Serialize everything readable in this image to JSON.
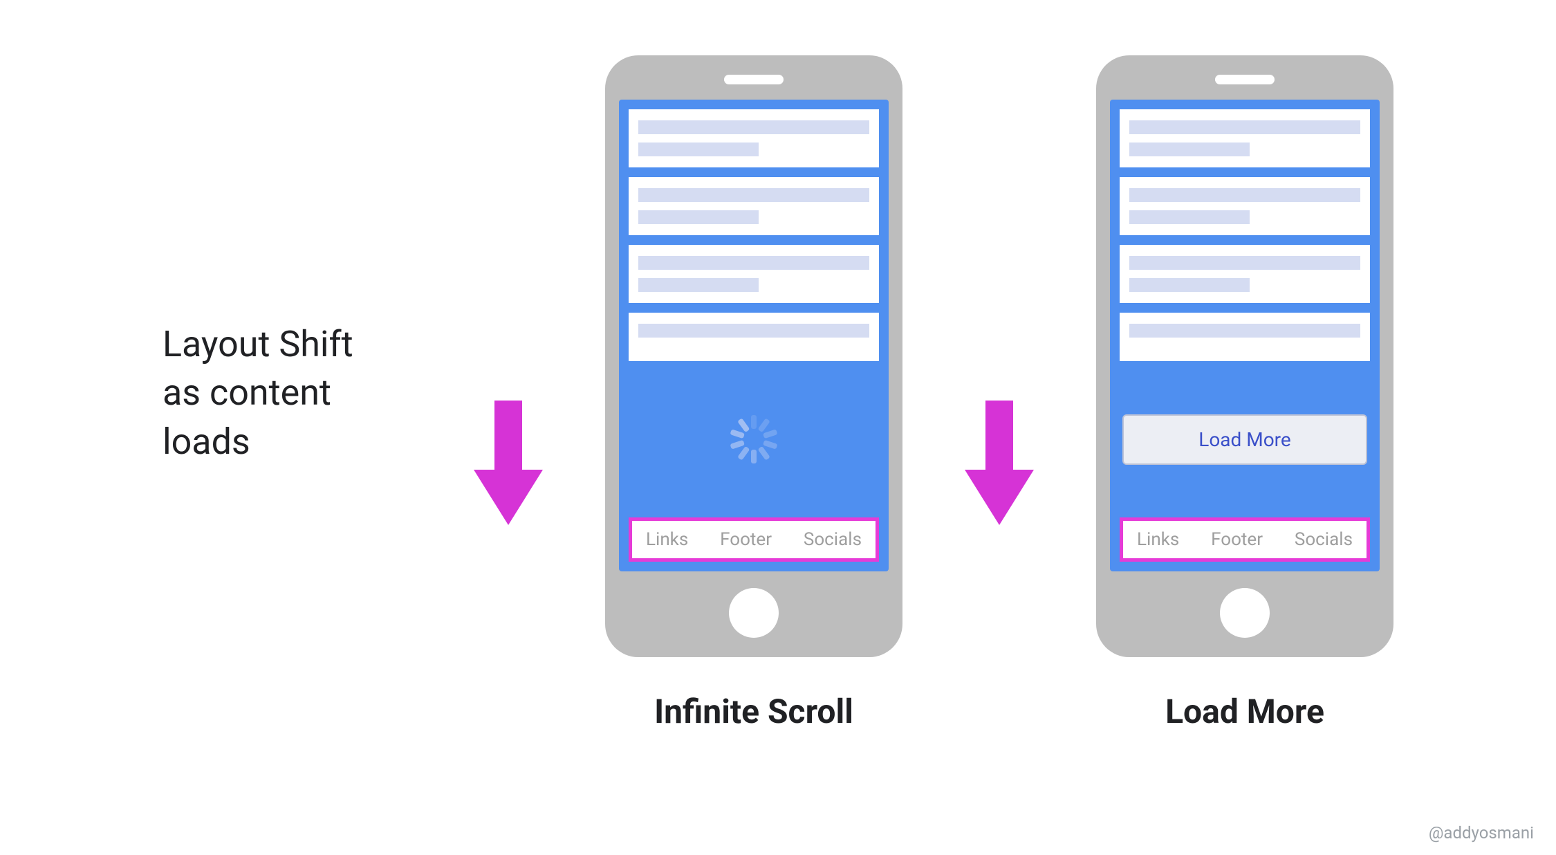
{
  "colors": {
    "phone_body": "#bdbdbd",
    "screen_bg": "#4f8ff0",
    "skeleton_bar": "#d5dcf2",
    "spinner_tick": "#a8c2f2",
    "footer_border": "#e63bd7",
    "footer_text": "#9e9e9e",
    "loadmore_bg": "#eceef4",
    "loadmore_border": "#bcc2d6",
    "loadmore_text": "#3a4fc9",
    "arrow": "#d633d6",
    "label_text": "#202124"
  },
  "side_label": {
    "line1": "Layout Shift",
    "line2": "as content",
    "line3": "loads"
  },
  "footer": {
    "links": "Links",
    "footer": "Footer",
    "socials": "Socials"
  },
  "loadmore_label": "Load More",
  "captions": {
    "left": "Infinite Scroll",
    "right": "Load More"
  },
  "credit": "@addyosmani",
  "spinner": {
    "ticks": 10
  }
}
